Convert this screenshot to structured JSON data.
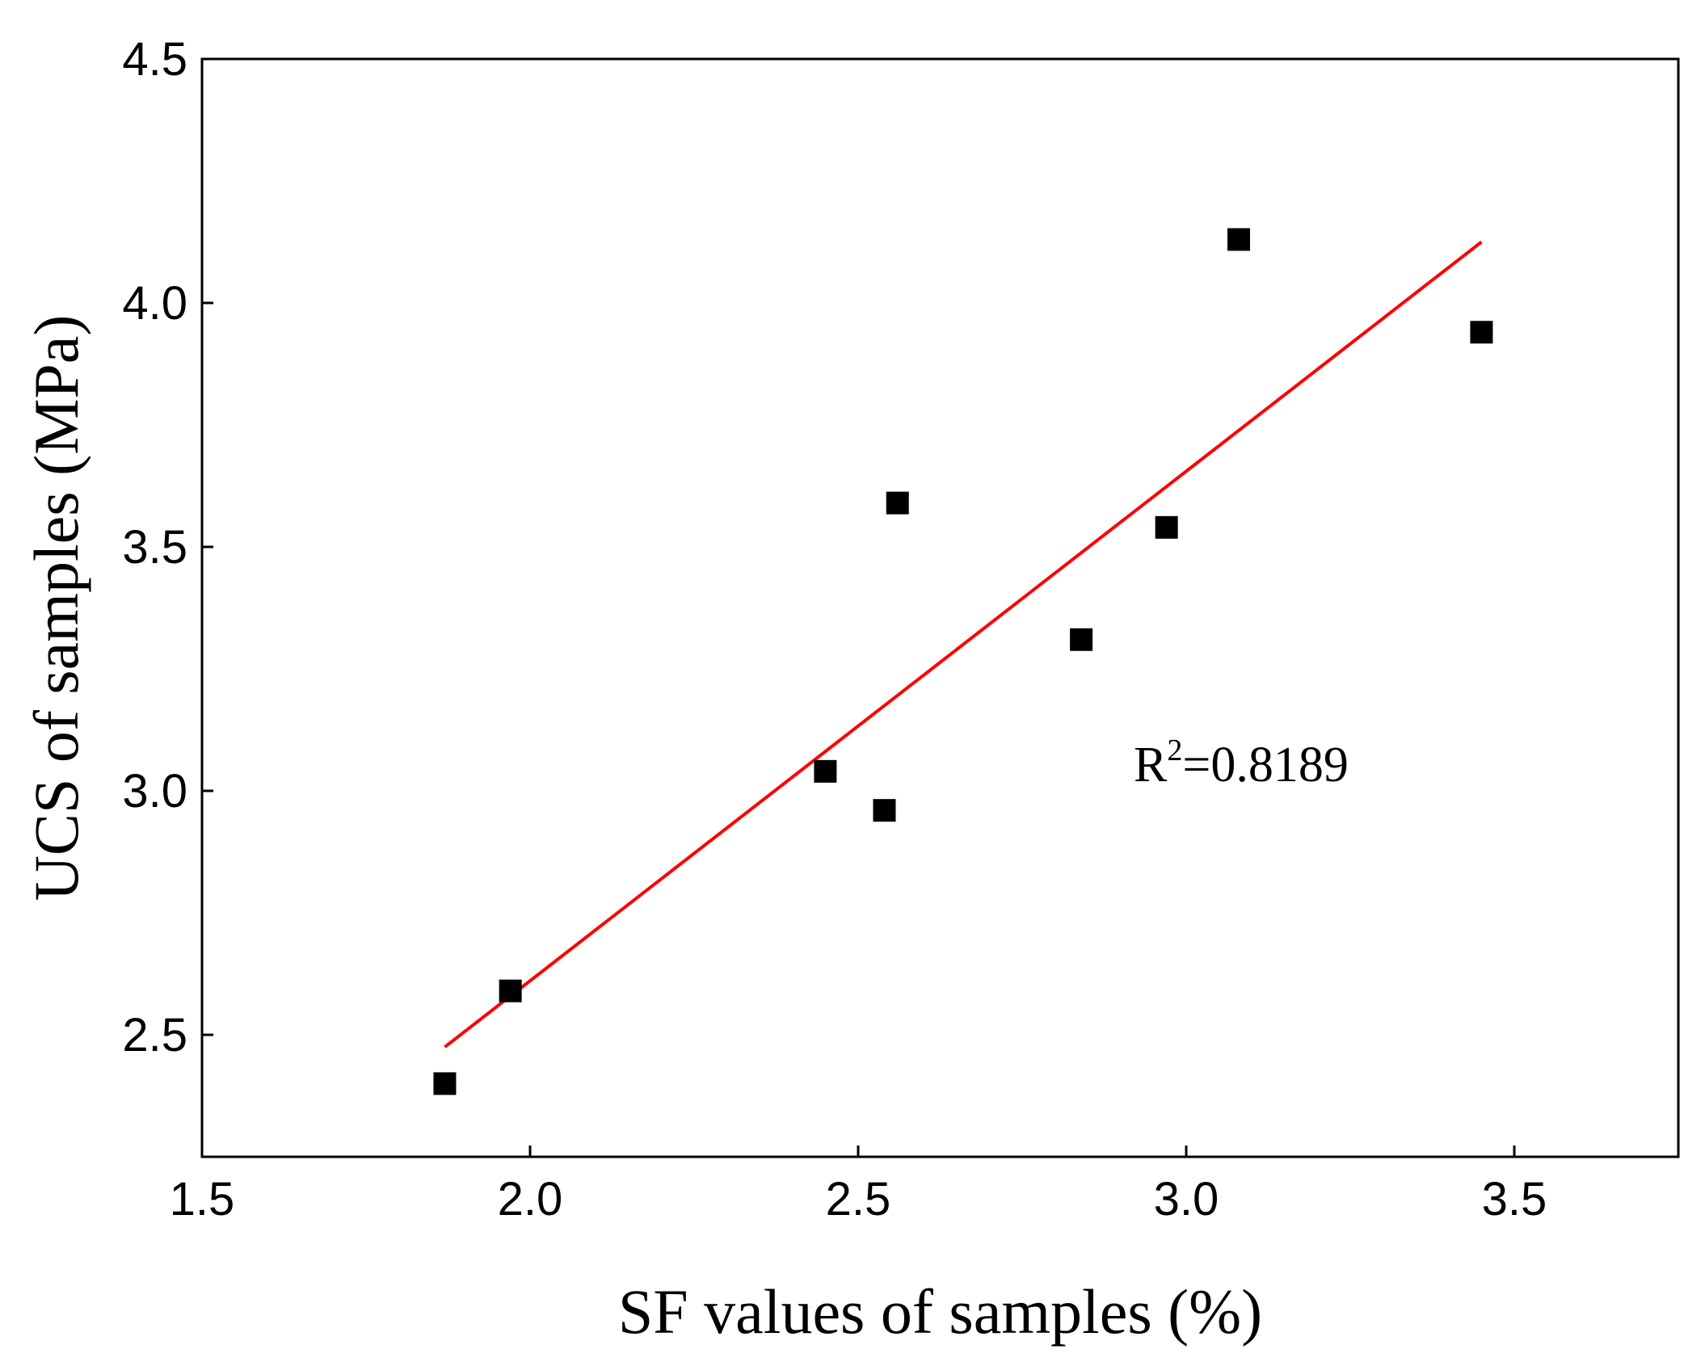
{
  "chart_data": {
    "type": "scatter",
    "title": "",
    "xlabel": "SF values of samples (%)",
    "ylabel": "UCS of samples (MPa)",
    "xlim": [
      1.5,
      3.75
    ],
    "ylim": [
      2.25,
      4.5
    ],
    "xticks": [
      1.5,
      2.0,
      2.5,
      3.0,
      3.5
    ],
    "yticks": [
      2.5,
      3.0,
      3.5,
      4.0,
      4.5
    ],
    "xtick_labels": [
      "1.5",
      "2.0",
      "2.5",
      "3.0",
      "3.5"
    ],
    "ytick_labels": [
      "2.5",
      "3.0",
      "3.5",
      "4.0",
      "4.5"
    ],
    "series": [
      {
        "name": "samples",
        "marker": "square",
        "color": "#000000",
        "points": [
          {
            "x": 1.87,
            "y": 2.4
          },
          {
            "x": 1.97,
            "y": 2.59
          },
          {
            "x": 2.45,
            "y": 3.04
          },
          {
            "x": 2.54,
            "y": 2.96
          },
          {
            "x": 2.56,
            "y": 3.59
          },
          {
            "x": 2.84,
            "y": 3.31
          },
          {
            "x": 2.97,
            "y": 3.54
          },
          {
            "x": 3.08,
            "y": 4.13
          },
          {
            "x": 3.45,
            "y": 3.94
          }
        ]
      }
    ],
    "fit_line": {
      "name": "linear fit",
      "color": "#ff0000",
      "x": [
        1.87,
        3.45
      ],
      "y": [
        2.475,
        4.125
      ]
    },
    "annotation": {
      "base": "R",
      "superscript": "2",
      "rest": "=0.8189",
      "x": 2.92,
      "y": 3.02
    },
    "grid": false,
    "legend": "none"
  }
}
